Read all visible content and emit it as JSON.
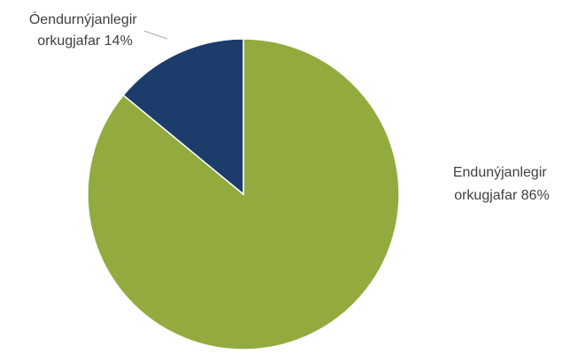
{
  "chart_data": {
    "type": "pie",
    "slices": [
      {
        "label_line1": "Endunýjanlegir",
        "label_line2": "orkugjafar 86%",
        "value": 86,
        "color": "#93ab3e"
      },
      {
        "label_line1": "Óendurnýjanlegir",
        "label_line2": "orkugjafar 14%",
        "value": 14,
        "color": "#1c3c6c"
      }
    ],
    "slice_border_color": "#ffffff",
    "leader_line_color": "#a6a6a6"
  }
}
